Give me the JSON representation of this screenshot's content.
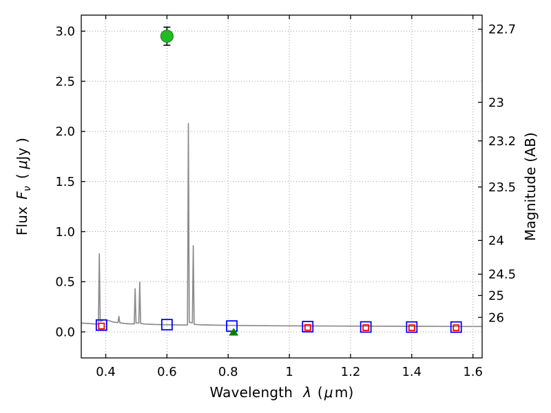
{
  "figure": {
    "xlabel": {
      "pre": "Wavelength",
      "sym": "λ",
      "unit_open": "(",
      "unit_mu": "μ",
      "unit_close": "m)"
    },
    "ylabel_left": {
      "pre": "Flux",
      "f": "F",
      "nu": "ν",
      "open": "(",
      "mu": "μ",
      "close": "Jy )"
    },
    "ylabel_right": "Magnitude (AB)"
  },
  "chart_data": {
    "type": "line",
    "title": "",
    "xlabel": "Wavelength λ (μm)",
    "ylabel_left": "Flux Fν ( μJy )",
    "ylabel_right": "Magnitude (AB)",
    "xlim": [
      0.32,
      1.63
    ],
    "ylim": [
      -0.26,
      3.16
    ],
    "grid": true,
    "x_ticks": [
      0.4,
      0.6,
      0.8,
      1.0,
      1.2,
      1.4,
      1.6
    ],
    "x_tick_labels": [
      "0.4",
      "0.6",
      "0.8",
      "1",
      "1.2",
      "1.4",
      "1.6"
    ],
    "y_ticks_left": [
      0.0,
      0.5,
      1.0,
      1.5,
      2.0,
      2.5,
      3.0
    ],
    "y_tick_labels_left": [
      "0.0",
      "0.5",
      "1.0",
      "1.5",
      "2.0",
      "2.5",
      "3.0"
    ],
    "y_ticks_right_mag": [
      22.7,
      23,
      23.2,
      23.5,
      24,
      24.5,
      25,
      26
    ],
    "y_tick_labels_right": [
      "22.7",
      "23",
      "23.2",
      "23.5",
      "24",
      "24.5",
      "25",
      "26"
    ],
    "ab_zeropoint": 23.9,
    "colors": {
      "spectrum": "#8c8c8c",
      "model_photometry": "#0000ff",
      "observed_photometry": "#ff0000",
      "detection": "#22bb22",
      "upper_limit": "#008000",
      "errorbar": "#000000",
      "grid": "#999999"
    },
    "series": [
      {
        "name": "galaxy-spectrum",
        "type": "line",
        "color": "#8c8c8c",
        "points": [
          [
            0.32,
            0.088
          ],
          [
            0.34,
            0.084
          ],
          [
            0.36,
            0.08
          ],
          [
            0.376,
            0.078
          ],
          [
            0.379,
            0.78
          ],
          [
            0.382,
            0.105
          ],
          [
            0.395,
            0.12
          ],
          [
            0.41,
            0.112
          ],
          [
            0.425,
            0.098
          ],
          [
            0.44,
            0.092
          ],
          [
            0.443,
            0.155
          ],
          [
            0.446,
            0.09
          ],
          [
            0.46,
            0.084
          ],
          [
            0.478,
            0.08
          ],
          [
            0.493,
            0.08
          ],
          [
            0.496,
            0.43
          ],
          [
            0.499,
            0.088
          ],
          [
            0.508,
            0.088
          ],
          [
            0.511,
            0.5
          ],
          [
            0.514,
            0.084
          ],
          [
            0.53,
            0.078
          ],
          [
            0.56,
            0.074
          ],
          [
            0.6,
            0.071
          ],
          [
            0.64,
            0.069
          ],
          [
            0.667,
            0.068
          ],
          [
            0.67,
            2.08
          ],
          [
            0.673,
            0.095
          ],
          [
            0.683,
            0.09
          ],
          [
            0.686,
            0.86
          ],
          [
            0.689,
            0.075
          ],
          [
            0.71,
            0.07
          ],
          [
            0.76,
            0.067
          ],
          [
            0.81,
            0.065
          ],
          [
            0.87,
            0.063
          ],
          [
            0.95,
            0.061
          ],
          [
            1.05,
            0.059
          ],
          [
            1.15,
            0.058
          ],
          [
            1.25,
            0.057
          ],
          [
            1.35,
            0.056
          ],
          [
            1.45,
            0.055
          ],
          [
            1.55,
            0.054
          ],
          [
            1.63,
            0.054
          ]
        ]
      },
      {
        "name": "model-photometry",
        "type": "scatter",
        "marker": "open-square",
        "color": "#0000ff",
        "size": 15,
        "points": [
          [
            0.386,
            0.068
          ],
          [
            0.6,
            0.072
          ],
          [
            0.812,
            0.058
          ],
          [
            1.06,
            0.052
          ],
          [
            1.25,
            0.049
          ],
          [
            1.4,
            0.048
          ],
          [
            1.545,
            0.048
          ]
        ]
      },
      {
        "name": "observed-photometry",
        "type": "scatter",
        "marker": "open-square",
        "color": "#ff0000",
        "size": 8,
        "points": [
          [
            0.386,
            0.058
          ],
          [
            1.06,
            0.044
          ],
          [
            1.25,
            0.042
          ],
          [
            1.4,
            0.041
          ],
          [
            1.545,
            0.041
          ]
        ]
      },
      {
        "name": "detection-point",
        "type": "scatter",
        "marker": "circle",
        "color": "#22bb22",
        "size": 18,
        "yerr": 0.09,
        "points": [
          [
            0.6,
            2.95
          ]
        ]
      },
      {
        "name": "upper-limit-point",
        "type": "scatter",
        "marker": "triangle-up",
        "color": "#008000",
        "size": 12,
        "points": [
          [
            0.818,
            0.0
          ]
        ]
      }
    ]
  }
}
